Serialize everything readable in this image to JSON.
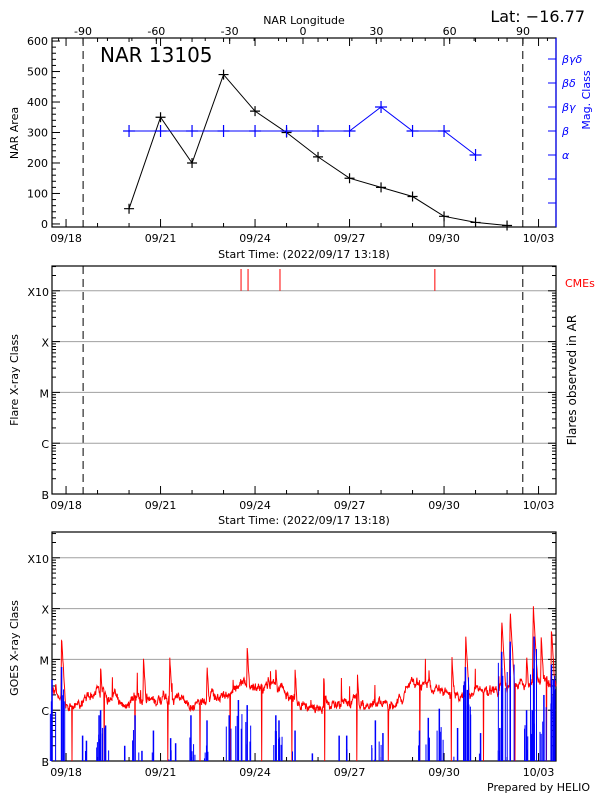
{
  "header": {
    "latitude_label": "Lat: −16.77",
    "top_axis_title": "NAR Longitude",
    "longitude_ticks": [
      "-90",
      "-60",
      "-30",
      "0",
      "30",
      "60",
      "90"
    ],
    "prepared_by": "Prepared by HELIO"
  },
  "date_ticks": [
    "09/18",
    "09/21",
    "09/24",
    "09/27",
    "09/30",
    "10/03"
  ],
  "start_time_label": "Start Time: (2022/09/17 13:18)",
  "colors": {
    "area": "#000000",
    "mag_class": "#0000ff",
    "cme": "#ff0000",
    "goes_long": "#ff0000",
    "goes_short": "#0000ff",
    "grid": "#a0a0a0"
  },
  "chart_data": [
    {
      "type": "line",
      "title": "NAR 13105",
      "ylabel": "NAR Area",
      "y2label": "Mag. Class",
      "xlabel": "Start Time: (2022/09/17 13:18)",
      "x_top_label": "NAR Longitude",
      "ylim": [
        0,
        600
      ],
      "yticks": [
        "0",
        "100",
        "200",
        "300",
        "400",
        "500",
        "600"
      ],
      "mag_class_levels": [
        "",
        "",
        "α",
        "β",
        "βγ",
        "βδ",
        "βγδ"
      ],
      "limb_crossings": [
        "09/18 13:00",
        "10/02 12:00"
      ],
      "x": [
        "09/20 00:00",
        "09/21 00:00",
        "09/22 00:00",
        "09/23 00:00",
        "09/24 00:00",
        "09/25 00:00",
        "09/26 00:00",
        "09/27 00:00",
        "09/28 00:00",
        "09/29 00:00",
        "09/30 00:00",
        "10/01 00:00",
        "10/02 00:00"
      ],
      "series": [
        {
          "name": "NAR Area",
          "values": [
            50,
            350,
            200,
            490,
            370,
            300,
            220,
            150,
            120,
            90,
            25,
            5,
            -5
          ]
        },
        {
          "name": "Mag. Class",
          "values": [
            "β",
            "β",
            "β",
            "β",
            "β",
            "β",
            "β",
            "β",
            "βγ",
            "β",
            "β",
            "α",
            null
          ]
        }
      ]
    },
    {
      "type": "scatter",
      "ylabel": "Flare X-ray Class",
      "y2label": "Flares observed in AR",
      "xlabel": "Start Time: (2022/09/17 13:18)",
      "yticks": [
        "B",
        "C",
        "M",
        "X",
        "X10"
      ],
      "cme_label": "CMEs",
      "cme_times": [
        "09/23 13:20",
        "09/23 18:40",
        "09/24 19:00",
        "09/29 17:00"
      ],
      "flares": [],
      "limb_crossings": [
        "09/18 13:00",
        "10/02 12:00"
      ]
    },
    {
      "type": "line",
      "ylabel": "GOES X-ray Class",
      "yticks": [
        "B",
        "C",
        "M",
        "X",
        "X10"
      ],
      "y_scale": "log flux (B=1e-7, C=1e-6, M=1e-5, X=1e-4, X10=1e-3 W/m²)",
      "goes_long_baseline": [
        [
          "09/17 13:18",
          -5.5
        ],
        [
          "09/18 00:00",
          -6.0
        ],
        [
          "09/18 12:00",
          -5.8
        ],
        [
          "09/19 00:00",
          -5.6
        ],
        [
          "09/19 12:00",
          -5.85
        ],
        [
          "09/20 00:00",
          -5.8
        ],
        [
          "09/20 12:00",
          -5.75
        ],
        [
          "09/21 00:00",
          -5.8
        ],
        [
          "09/21 12:00",
          -5.85
        ],
        [
          "09/22 00:00",
          -5.9
        ],
        [
          "09/22 12:00",
          -5.75
        ],
        [
          "09/23 00:00",
          -5.7
        ],
        [
          "09/23 12:00",
          -5.5
        ],
        [
          "09/24 00:00",
          -5.6
        ],
        [
          "09/24 12:00",
          -5.45
        ],
        [
          "09/25 00:00",
          -5.7
        ],
        [
          "09/25 12:00",
          -5.95
        ],
        [
          "09/26 00:00",
          -5.95
        ],
        [
          "09/26 12:00",
          -5.85
        ],
        [
          "09/27 00:00",
          -5.9
        ],
        [
          "09/27 12:00",
          -5.9
        ],
        [
          "09/28 00:00",
          -5.95
        ],
        [
          "09/28 12:00",
          -5.9
        ],
        [
          "09/29 00:00",
          -5.5
        ],
        [
          "09/29 12:00",
          -5.5
        ],
        [
          "09/30 00:00",
          -5.7
        ],
        [
          "09/30 12:00",
          -5.65
        ],
        [
          "10/01 00:00",
          -5.6
        ],
        [
          "10/01 12:00",
          -5.65
        ],
        [
          "10/02 00:00",
          -5.5
        ],
        [
          "10/02 12:00",
          -5.45
        ],
        [
          "10/03 00:00",
          -5.4
        ],
        [
          "10/03 13:18",
          -5.5
        ]
      ],
      "goes_long_peaks": [
        [
          "09/17 20:35",
          -4.55
        ],
        [
          "09/19 02:20",
          -5.11
        ],
        [
          "09/20 11:00",
          -4.95
        ],
        [
          "09/21 07:00",
          -4.96
        ],
        [
          "09/22 11:24",
          -5.1
        ],
        [
          "09/23 18:00",
          -4.74
        ],
        [
          "09/24 15:50",
          -5.13
        ],
        [
          "09/25 06:30",
          -5.2
        ],
        [
          "09/26 04:20",
          -5.3
        ],
        [
          "09/27 06:00",
          -5.3
        ],
        [
          "09/28 21:00",
          -5.45
        ],
        [
          "09/29 12:30",
          -5.2
        ],
        [
          "09/30 06:00",
          -4.95
        ],
        [
          "09/30 16:30",
          -4.52
        ],
        [
          "10/01 19:55",
          -4.2
        ],
        [
          "10/02 02:24",
          -4.04
        ],
        [
          "10/02 14:53",
          -4.88
        ],
        [
          "10/02 20:00",
          -3.95
        ],
        [
          "10/03 02:00",
          -4.55
        ],
        [
          "10/03 09:50",
          -4.37
        ]
      ],
      "goes_long_dropouts": [
        "09/18 04:30",
        "09/19 05:00",
        "09/20 04:35",
        "09/21 05:40",
        "09/22 06:10",
        "09/23 05:00",
        "09/24 05:00",
        "09/25 04:00",
        "09/26 05:00",
        "09/27 05:30",
        "09/28 05:30",
        "09/29 05:30",
        "09/30 05:30",
        "10/01 06:00",
        "10/02 06:00",
        "10/03 06:00"
      ],
      "goes_short_peaks": [
        [
          "09/17 13:18",
          -5.4
        ],
        [
          "09/17 20:35",
          -5.15
        ],
        [
          "09/18 12:37",
          -6.5
        ],
        [
          "09/18 15:33",
          -6.6
        ],
        [
          "09/19 01:10",
          -6.1
        ],
        [
          "09/19 02:20",
          -6.0
        ],
        [
          "09/19 06:07",
          -6.3
        ],
        [
          "09/19 20:42",
          -6.7
        ],
        [
          "09/20 04:35",
          -6.1
        ],
        [
          "09/20 09:50",
          -6.8
        ],
        [
          "09/20 18:35",
          -6.4
        ],
        [
          "09/21 07:42",
          -6.55
        ],
        [
          "09/21 11:30",
          -6.65
        ],
        [
          "09/21 23:10",
          -6.1
        ],
        [
          "09/22 11:24",
          -6.2
        ],
        [
          "09/23 04:19",
          -6.1
        ],
        [
          "09/23 11:19",
          -5.8
        ],
        [
          "09/23 18:01",
          -5.9
        ],
        [
          "09/24 15:50",
          -6.1
        ],
        [
          "09/24 18:14",
          -6.2
        ],
        [
          "09/25 06:29",
          -6.4
        ],
        [
          "09/25 19:41",
          -6.85
        ],
        [
          "09/26 16:05",
          -6.5
        ],
        [
          "09/26 21:50",
          -6.5
        ],
        [
          "09/27 19:41",
          -6.2
        ],
        [
          "09/28 01:26",
          -6.45
        ],
        [
          "09/29 05:17",
          -6.4
        ],
        [
          "09/29 12:00",
          -6.15
        ],
        [
          "09/29 20:24",
          -5.97
        ],
        [
          "09/30 10:19",
          -6.35
        ],
        [
          "09/30 16:19",
          -5.15
        ],
        [
          "09/30 17:46",
          -5.6
        ],
        [
          "10/01 03:50",
          -6.45
        ],
        [
          "10/01 18:29",
          -6.35
        ],
        [
          "10/01 19:55",
          -4.85
        ],
        [
          "10/02 02:24",
          -4.65
        ],
        [
          "10/02 14:53",
          -6.0
        ],
        [
          "10/02 19:12",
          -6.0
        ],
        [
          "10/02 20:38",
          -4.55
        ],
        [
          "10/03 04:05",
          -5.7
        ],
        [
          "10/03 09:50",
          -5.1
        ],
        [
          "10/03 11:17",
          -5.4
        ]
      ]
    }
  ]
}
